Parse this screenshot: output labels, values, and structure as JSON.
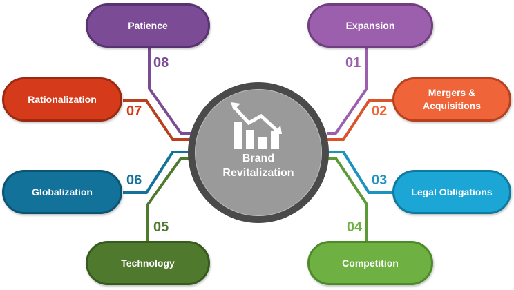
{
  "hub": {
    "title": "Brand\nRevitalization",
    "icon": "declining-chart-icon"
  },
  "items": [
    {
      "number": "01",
      "label": "Expansion",
      "color": "#9c5fae",
      "border": "#6f3f80"
    },
    {
      "number": "02",
      "label": "Mergers &\nAcquisitions",
      "color": "#f0643a",
      "border": "#b8401e"
    },
    {
      "number": "03",
      "label": "Legal Obligations",
      "color": "#1ba6d6",
      "border": "#0f7aa0"
    },
    {
      "number": "04",
      "label": "Competition",
      "color": "#6eb042",
      "border": "#4d8a2a"
    },
    {
      "number": "05",
      "label": "Technology",
      "color": "#4f7a2e",
      "border": "#375a1e"
    },
    {
      "number": "06",
      "label": "Globalization",
      "color": "#12729a",
      "border": "#0b5474"
    },
    {
      "number": "07",
      "label": "Rationalization",
      "color": "#d53b1a",
      "border": "#9c2a10"
    },
    {
      "number": "08",
      "label": "Patience",
      "color": "#7b4b96",
      "border": "#573370"
    }
  ]
}
